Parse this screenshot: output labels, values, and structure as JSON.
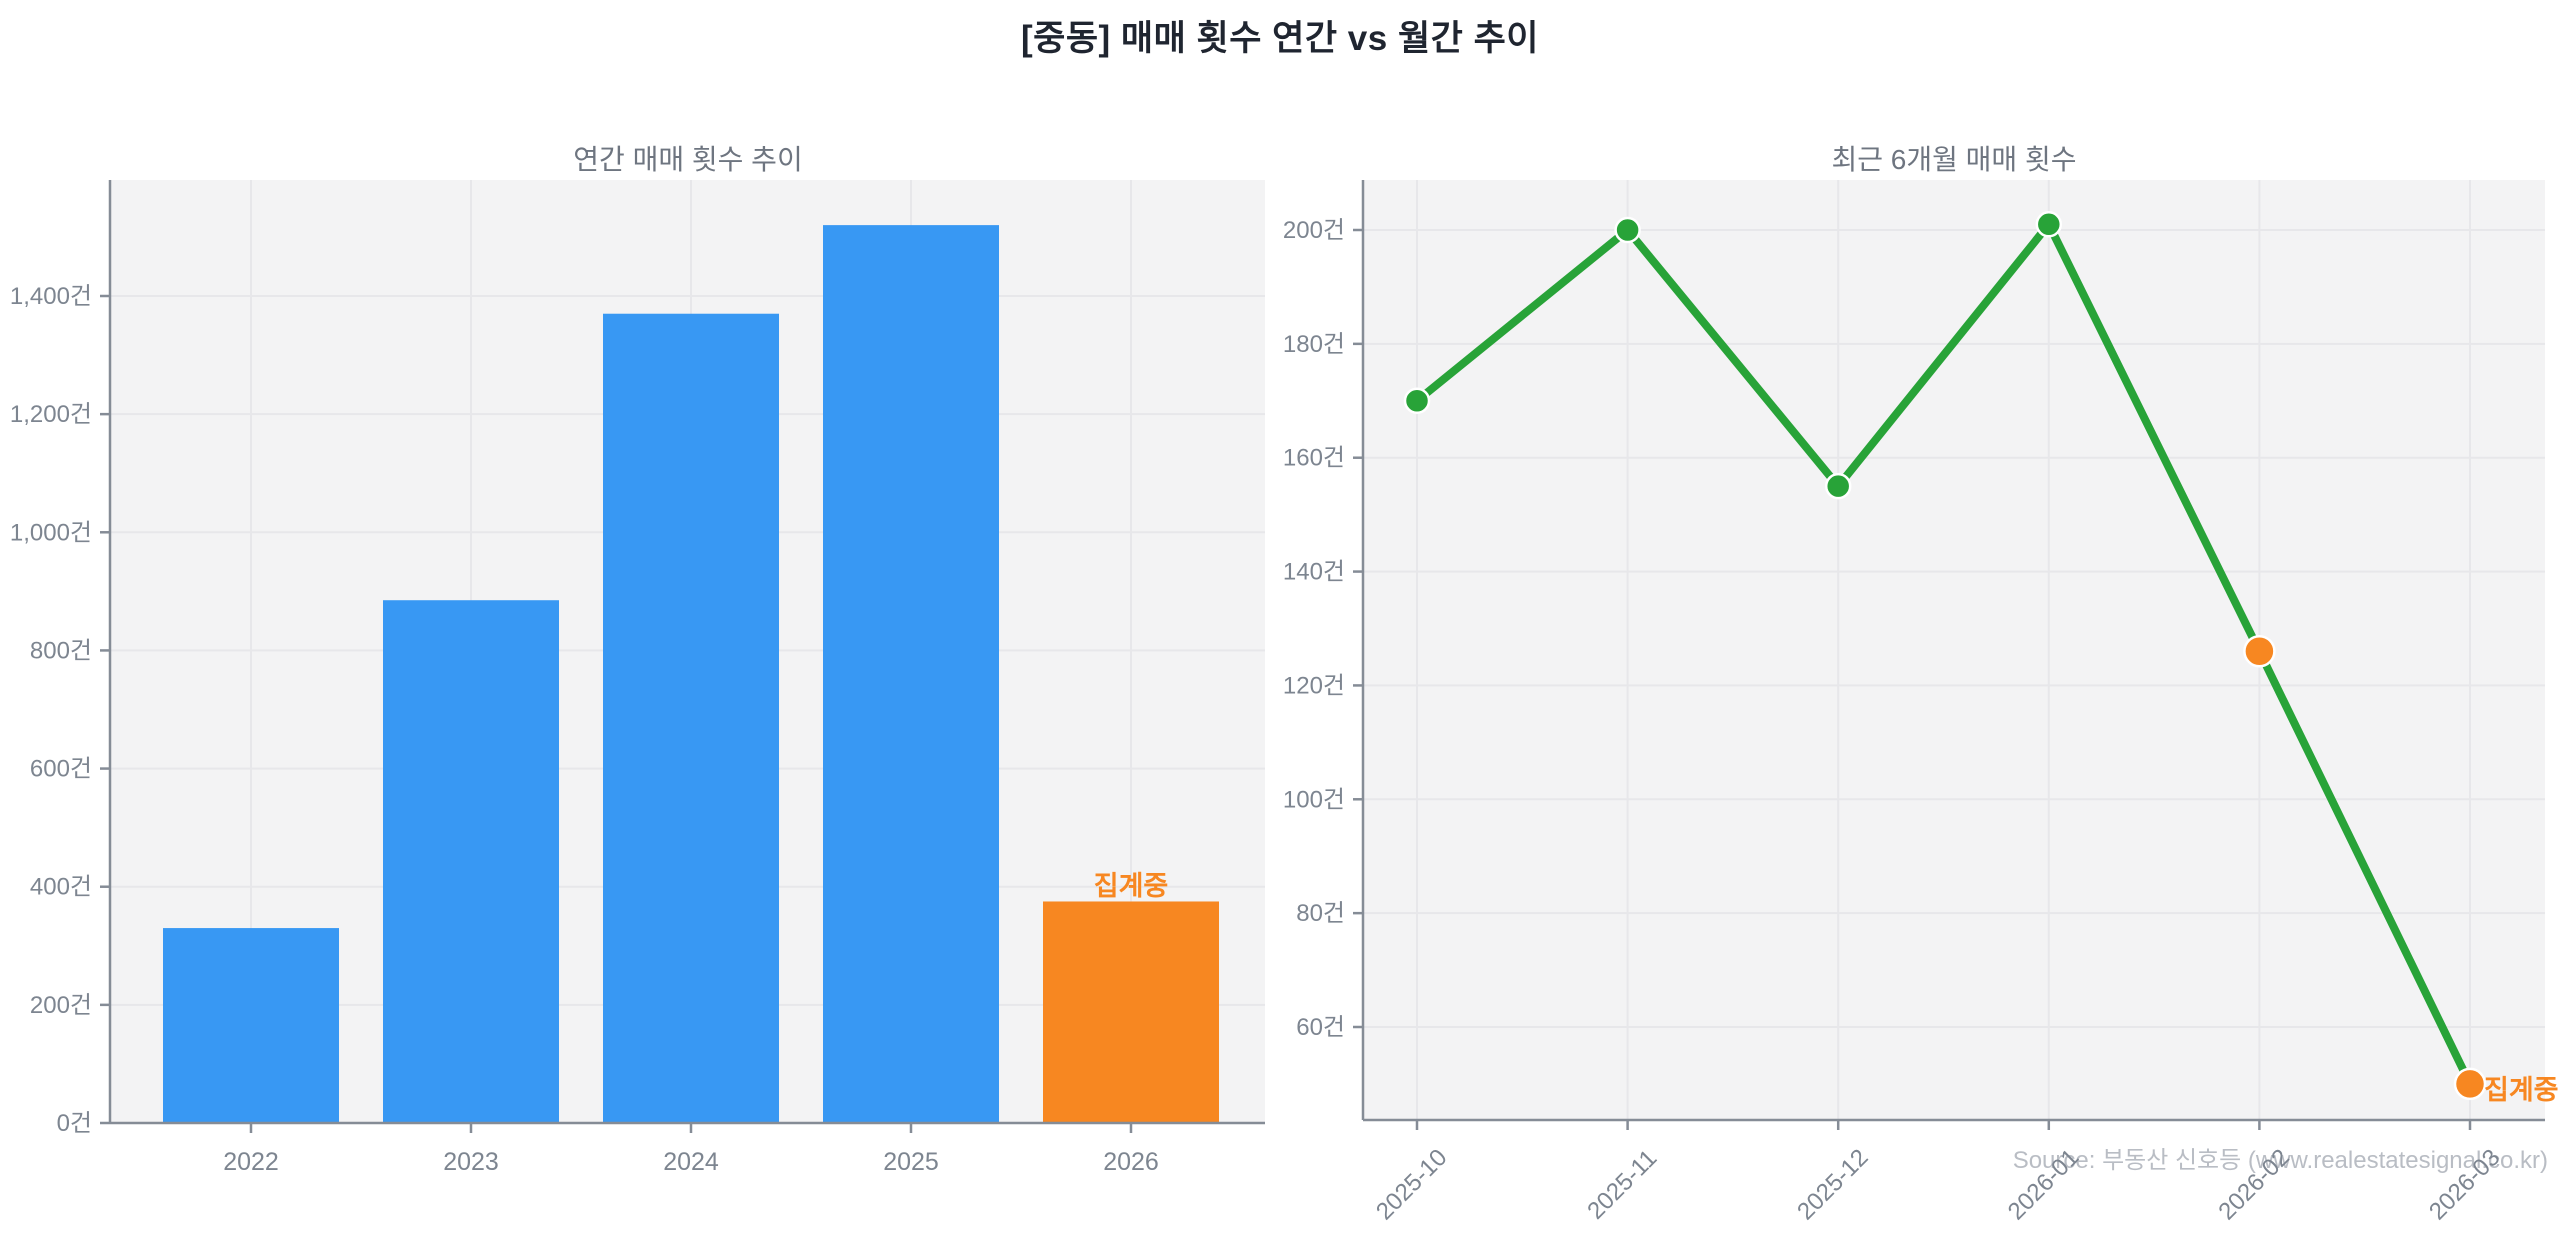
{
  "header": {
    "title": "[중동] 매매 횟수 연간 vs 월간 추이"
  },
  "watermark": "Source: 부동산 신호등 (www.realestatesignal.co.kr)",
  "colors": {
    "blue": "#3898f3",
    "orange": "#f78721",
    "green": "#28a338",
    "plot_bg": "#f3f3f4",
    "grid": "#e7e7ea",
    "spine": "#858c96",
    "tick_label": "#7d8590",
    "subtitle": "#6e7580",
    "title": "#1f2530",
    "watermark": "#b9bdc4"
  },
  "chart_data": [
    {
      "type": "bar",
      "title": "연간 매매 횟수 추이",
      "categories": [
        "2022",
        "2023",
        "2024",
        "2025",
        "2026"
      ],
      "values": [
        330,
        885,
        1370,
        1520,
        375
      ],
      "bar_roles": [
        "normal",
        "normal",
        "normal",
        "normal",
        "accent"
      ],
      "unit": "건",
      "ylabel_format": "comma",
      "yticks": [
        0,
        200,
        400,
        600,
        800,
        1000,
        1200,
        1400
      ],
      "ylim": [
        0,
        1600
      ],
      "grid": true,
      "legend": false,
      "annotation": {
        "text": "집계중",
        "category": "2026"
      }
    },
    {
      "type": "line",
      "title": "최근 6개월 매매 횟수",
      "x": [
        "2025-10",
        "2025-11",
        "2025-12",
        "2026-01",
        "2026-02",
        "2026-03"
      ],
      "values": [
        170,
        200,
        155,
        201,
        126,
        50
      ],
      "point_roles": [
        "normal",
        "normal",
        "normal",
        "normal",
        "accent",
        "accent"
      ],
      "unit": "건",
      "yticks": [
        60,
        80,
        100,
        120,
        140,
        160,
        180,
        200
      ],
      "ylim": [
        44,
        209
      ],
      "x_tick_rotation": 45,
      "grid": true,
      "legend": false,
      "annotation": {
        "text": "집계중",
        "x": "2026-03"
      }
    }
  ]
}
